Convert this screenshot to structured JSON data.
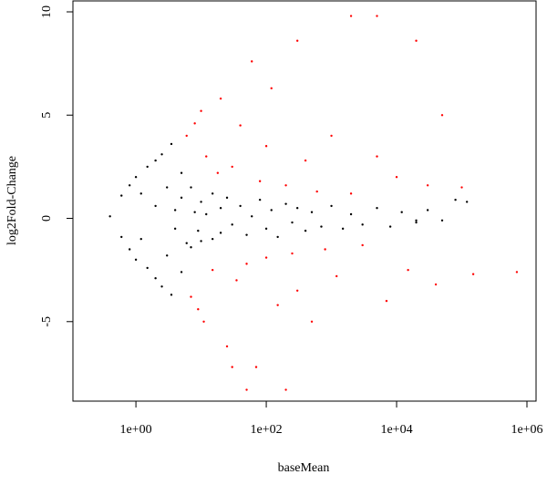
{
  "chart_data": {
    "type": "scatter",
    "x_label": "baseMean",
    "y_label": "log2Fold-Change",
    "xscale": "log",
    "xlim": [
      0.108,
      1380000
    ],
    "ylim": [
      -8.85,
      10.53
    ],
    "xticks": [
      {
        "value": 1,
        "label": "1e+00"
      },
      {
        "value": 100,
        "label": "1e+02"
      },
      {
        "value": 10000,
        "label": "1e+04"
      },
      {
        "value": 1000000,
        "label": "1e+06"
      }
    ],
    "yticks": [
      -5,
      0,
      5,
      10
    ],
    "series": [
      {
        "color": "#000000",
        "x": [
          0.4,
          0.6,
          0.6,
          0.8,
          0.8,
          1,
          1,
          1.2,
          1.2,
          1.5,
          1.5,
          2,
          2,
          2,
          2.5,
          2.5,
          3,
          3,
          3.5,
          3.5,
          4,
          4,
          5,
          5,
          5,
          6,
          7,
          7,
          8,
          9,
          10,
          10,
          12,
          15,
          15,
          20,
          20,
          25,
          30,
          40,
          50,
          60,
          80,
          100,
          120,
          150,
          200,
          250,
          300,
          400,
          500,
          700,
          1000,
          1500,
          2000,
          3000,
          5000,
          8000,
          12000,
          20000,
          30000,
          50000,
          80000,
          120000,
          20000
        ],
        "values": [
          0.1,
          1.1,
          -0.9,
          1.6,
          -1.5,
          2.0,
          -2.0,
          1.2,
          -1.0,
          2.5,
          -2.4,
          2.8,
          -2.9,
          0.6,
          3.1,
          -3.3,
          1.5,
          -1.8,
          3.6,
          -3.7,
          0.4,
          -0.5,
          2.2,
          -2.6,
          1.0,
          -1.2,
          1.5,
          -1.4,
          0.3,
          -0.6,
          0.8,
          -1.1,
          0.2,
          1.2,
          -1.0,
          0.5,
          -0.7,
          1.0,
          -0.3,
          0.6,
          -0.8,
          0.1,
          0.9,
          -0.5,
          0.4,
          -0.9,
          0.7,
          -0.2,
          0.5,
          -0.6,
          0.3,
          -0.4,
          0.6,
          -0.5,
          0.2,
          -0.3,
          0.5,
          -0.4,
          0.3,
          -0.2,
          0.4,
          -0.1,
          0.9,
          0.8,
          -0.1
        ]
      },
      {
        "color": "#ff0000",
        "x": [
          6,
          8,
          10,
          7,
          9,
          11,
          12,
          15,
          18,
          20,
          25,
          30,
          35,
          40,
          50,
          60,
          70,
          80,
          100,
          100,
          120,
          150,
          200,
          250,
          300,
          300,
          400,
          500,
          600,
          800,
          1000,
          1200,
          2000,
          2000,
          3000,
          5000,
          5000,
          7000,
          10000,
          15000,
          20000,
          30000,
          40000,
          50000,
          100000,
          150000,
          700000,
          50,
          200,
          30
        ],
        "values": [
          4.0,
          4.6,
          5.2,
          -3.8,
          -4.4,
          -5.0,
          3.0,
          -2.5,
          2.2,
          5.8,
          -6.2,
          2.5,
          -3.0,
          4.5,
          -2.2,
          7.6,
          -7.2,
          1.8,
          -1.9,
          3.5,
          6.3,
          -4.2,
          1.6,
          -1.7,
          8.6,
          -3.5,
          2.8,
          -5.0,
          1.3,
          -1.5,
          4.0,
          -2.8,
          9.8,
          1.2,
          -1.3,
          9.8,
          3.0,
          -4.0,
          2.0,
          -2.5,
          8.6,
          1.6,
          -3.2,
          5.0,
          1.5,
          -2.7,
          -2.6,
          -8.3,
          -8.3,
          -7.2
        ]
      }
    ]
  }
}
